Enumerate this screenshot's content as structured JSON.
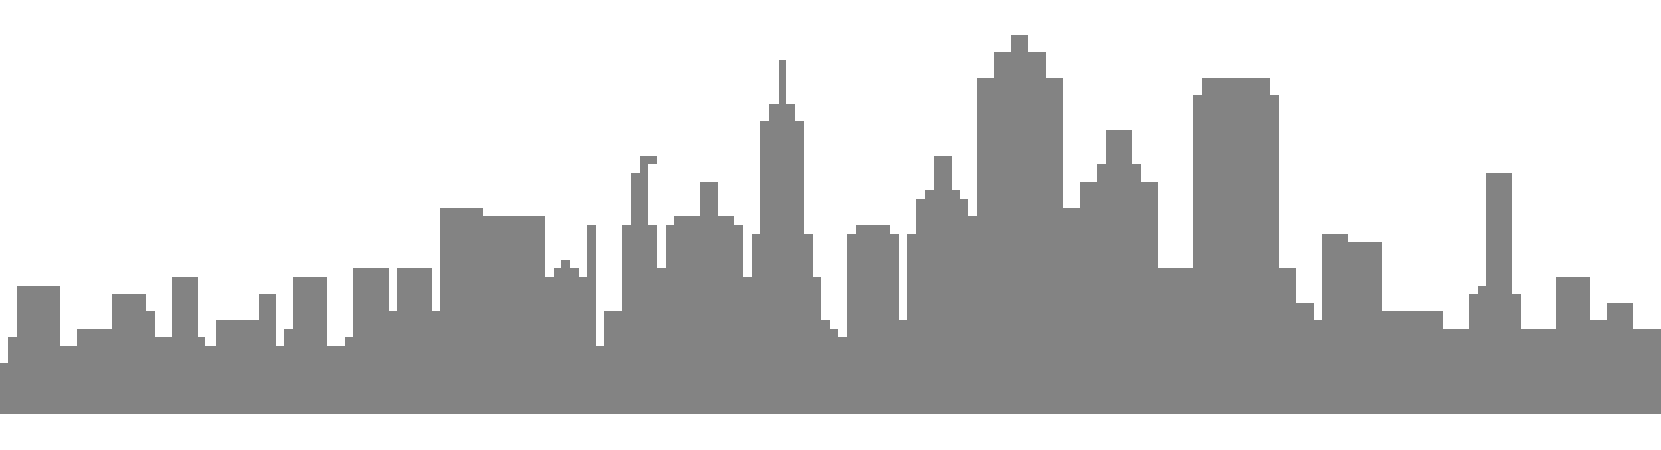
{
  "scene": {
    "background_color": "#ffffff",
    "skyline_color": "#838383",
    "description_visible_text": ""
  }
}
